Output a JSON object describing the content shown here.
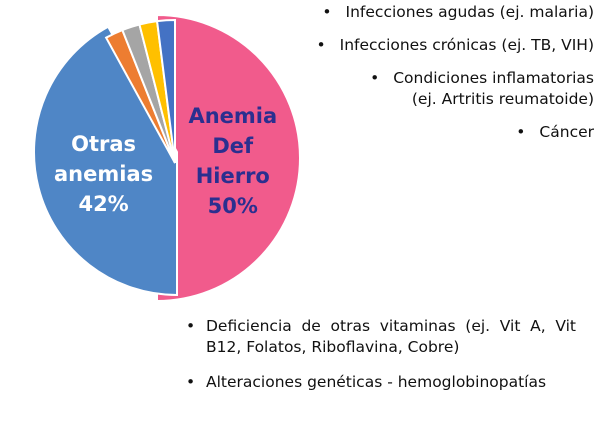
{
  "chart_data": {
    "type": "pie",
    "exploded": true,
    "slices": [
      {
        "label_lines": [
          "Anemia",
          "Def",
          "Hierro",
          "50%"
        ],
        "value": 50,
        "color": "#f15b8c",
        "label_color": "#2b2f8f"
      },
      {
        "label_lines": [
          "Otras",
          "anemias",
          "42%"
        ],
        "value": 42,
        "color": "#4f86c6",
        "label_color": "#ffffff"
      },
      {
        "label_lines": [],
        "value": 2,
        "color": "#ed7d31",
        "label_color": ""
      },
      {
        "label_lines": [],
        "value": 2,
        "color": "#a5a5a5",
        "label_color": ""
      },
      {
        "label_lines": [],
        "value": 2,
        "color": "#ffc000",
        "label_color": ""
      },
      {
        "label_lines": [],
        "value": 2,
        "color": "#4472c4",
        "label_color": ""
      }
    ]
  },
  "top_bullets": [
    {
      "lines": [
        "Infecciones agudas  (ej. malaria)"
      ]
    },
    {
      "lines": [
        "Infecciones crónicas (ej. TB, VIH)"
      ]
    },
    {
      "lines": [
        "Condiciones inflamatorias",
        "(ej. Artritis reumatoide)"
      ]
    },
    {
      "lines": [
        "Cáncer"
      ]
    }
  ],
  "bottom_bullets": [
    {
      "text": "Deficiencia de otras vitaminas (ej. Vit A, Vit B12, Folatos, Riboflavina, Cobre)"
    },
    {
      "text": "Alteraciones genéticas - hemoglobinopatías"
    }
  ],
  "bullet_char": "•"
}
